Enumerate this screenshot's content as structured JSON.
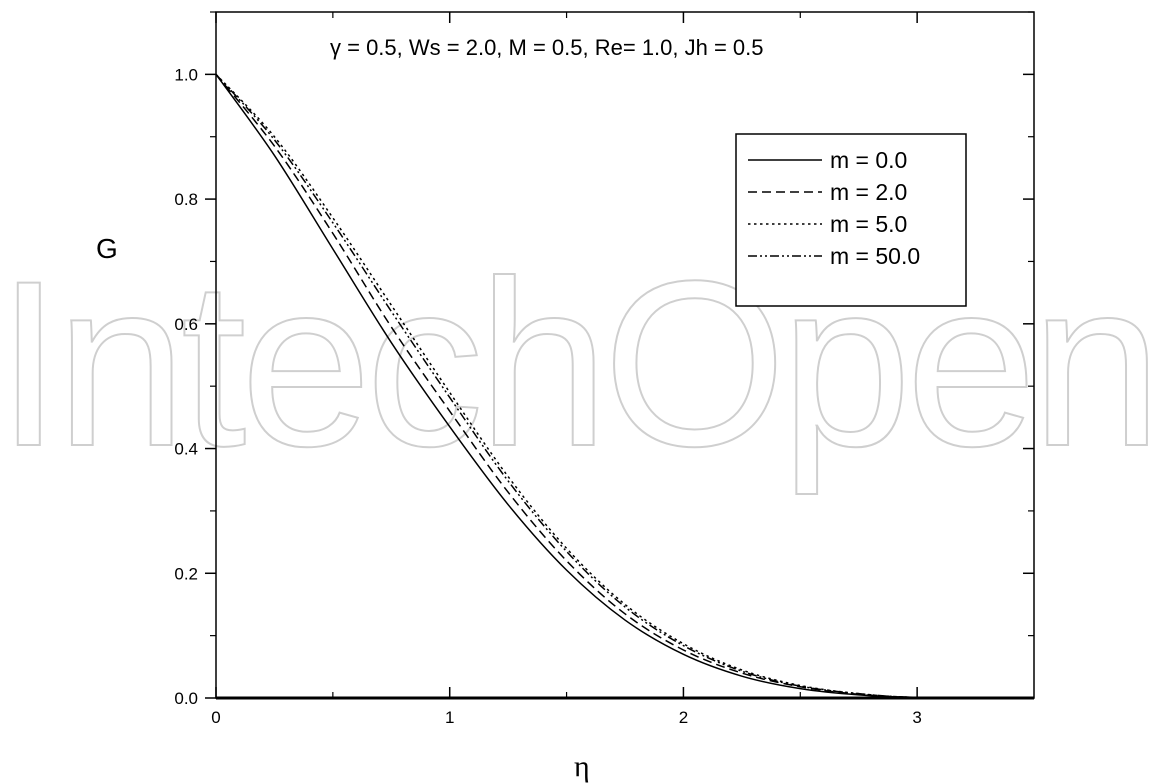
{
  "watermark": "IntechOpen",
  "chart_data": {
    "type": "line",
    "ylabel": "G",
    "xlabel": "η",
    "annotation": "γ = 0.5, Ws = 2.0, M = 0.5, Re= 1.0, Jh = 0.5",
    "xlim": [
      0,
      3.5
    ],
    "ylim": [
      0,
      1.1
    ],
    "xticks": [
      0,
      1,
      2,
      3
    ],
    "xtick_labels": [
      "0",
      "1",
      "2",
      "3"
    ],
    "yticks": [
      0.0,
      0.2,
      0.4,
      0.6,
      0.8,
      1.0
    ],
    "ytick_labels": [
      "0.0",
      "0.2",
      "0.4",
      "0.6",
      "0.8",
      "1.0"
    ],
    "grid": false,
    "legend_position": "top-right",
    "x": [
      0,
      0.25,
      0.5,
      0.75,
      1.0,
      1.25,
      1.5,
      1.75,
      2.0,
      2.25,
      2.5,
      2.75,
      3.0,
      3.5
    ],
    "series": [
      {
        "name": "m = 0.0",
        "dash": "solid",
        "values": [
          1.0,
          0.87,
          0.72,
          0.57,
          0.435,
          0.31,
          0.205,
          0.125,
          0.07,
          0.035,
          0.015,
          0.005,
          0.001,
          0.0
        ]
      },
      {
        "name": "m = 2.0",
        "dash": "dashed",
        "values": [
          1.0,
          0.885,
          0.745,
          0.595,
          0.46,
          0.33,
          0.22,
          0.135,
          0.077,
          0.04,
          0.018,
          0.006,
          0.001,
          0.0
        ]
      },
      {
        "name": "m = 5.0",
        "dash": "dotted",
        "values": [
          1.0,
          0.9,
          0.77,
          0.63,
          0.49,
          0.355,
          0.24,
          0.15,
          0.087,
          0.045,
          0.02,
          0.007,
          0.001,
          0.0
        ]
      },
      {
        "name": "m = 50.0",
        "dash": "dashdotdot",
        "values": [
          1.0,
          0.895,
          0.762,
          0.62,
          0.482,
          0.348,
          0.235,
          0.146,
          0.084,
          0.043,
          0.019,
          0.007,
          0.001,
          0.0
        ]
      }
    ]
  }
}
